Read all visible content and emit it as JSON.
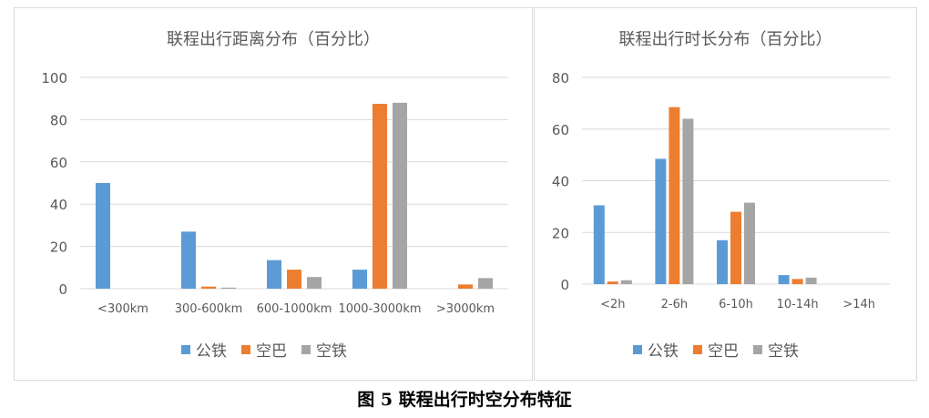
{
  "caption": "图 5 联程出行时空分布特征",
  "colors": {
    "gongtie": "#5b9bd5",
    "kongba": "#ed7d31",
    "kongtie": "#a5a5a5",
    "grid": "#d9d9d9"
  },
  "chart_data": [
    {
      "type": "bar",
      "title": "联程出行距离分布（百分比）",
      "categories": [
        "<300km",
        "300-600km",
        "600-1000km",
        "1000-3000km",
        ">3000km"
      ],
      "series": [
        {
          "name": "公铁",
          "values": [
            50,
            27,
            13.5,
            9,
            0
          ]
        },
        {
          "name": "空巴",
          "values": [
            0,
            1,
            9,
            87.5,
            2
          ]
        },
        {
          "name": "空铁",
          "values": [
            0,
            0.5,
            5.5,
            88,
            5
          ]
        }
      ],
      "ylim": [
        0,
        100
      ],
      "yticks": [
        0,
        20,
        40,
        60,
        80,
        100
      ],
      "grid": true,
      "legend": "bottom"
    },
    {
      "type": "bar",
      "title": "联程出行时长分布（百分比）",
      "categories": [
        "<2h",
        "2-6h",
        "6-10h",
        "10-14h",
        ">14h"
      ],
      "series": [
        {
          "name": "公铁",
          "values": [
            30.5,
            48.5,
            17,
            3.5,
            0
          ]
        },
        {
          "name": "空巴",
          "values": [
            1,
            68.5,
            28,
            2,
            0
          ]
        },
        {
          "name": "空铁",
          "values": [
            1.5,
            64,
            31.5,
            2.5,
            0
          ]
        }
      ],
      "ylim": [
        0,
        80
      ],
      "yticks": [
        0,
        20,
        40,
        60,
        80
      ],
      "grid": true,
      "legend": "bottom"
    }
  ]
}
